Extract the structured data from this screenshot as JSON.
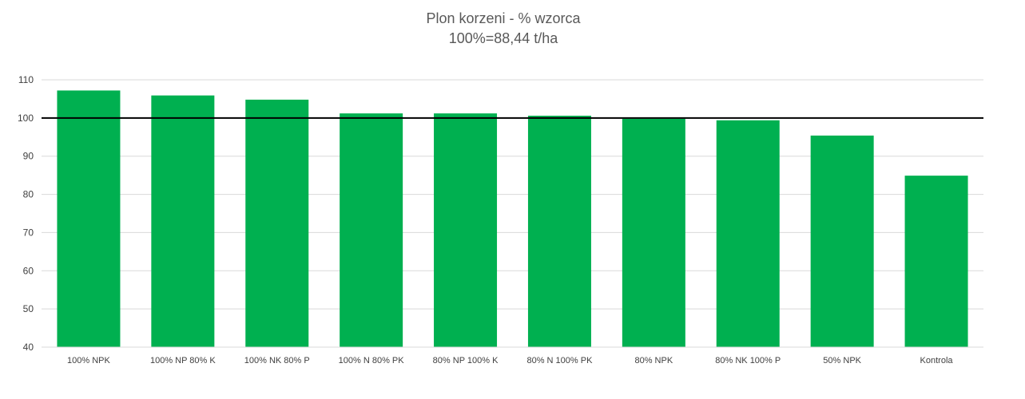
{
  "chart_data": {
    "type": "bar",
    "title": "Plon korzeni - % wzorca",
    "subtitle": "100%=88,44 t/ha",
    "categories": [
      "100% NPK",
      "100% NP 80% K",
      "100% NK 80% P",
      "100% N 80% PK",
      "80% NP 100% K",
      "80% N 100% PK",
      "80% NPK",
      "80% NK 100% P",
      "50% NPK",
      "Kontrola"
    ],
    "values": [
      107.2,
      105.9,
      104.8,
      101.2,
      101.2,
      100.6,
      99.8,
      99.4,
      95.4,
      84.9
    ],
    "ylim": [
      40,
      110
    ],
    "yticks": [
      40,
      50,
      60,
      70,
      80,
      90,
      100,
      110
    ],
    "reference_line": 100,
    "grid": true,
    "legend": "none",
    "bar_color": "#00B050",
    "reference_color": "#000000",
    "grid_color": "#D9D9D9"
  }
}
